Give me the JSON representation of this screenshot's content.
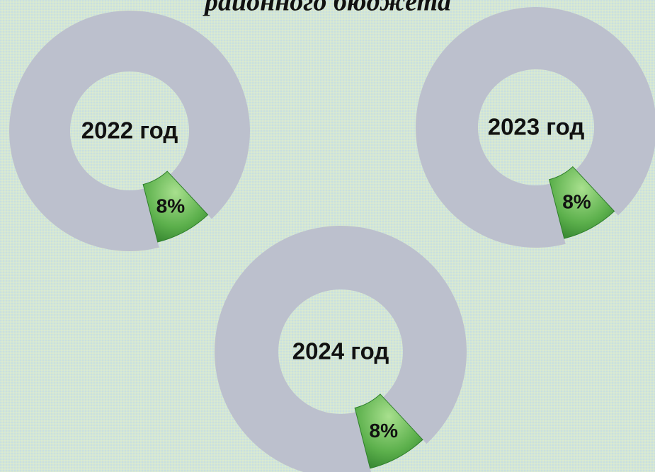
{
  "title": "районного бюджета",
  "chart_data": [
    {
      "type": "donut",
      "label": "2022 год",
      "values": [
        8,
        92
      ],
      "value_labels": [
        "8%",
        null
      ],
      "colors": [
        "#5cb04c",
        "#bcc0cd"
      ]
    },
    {
      "type": "donut",
      "label": "2023 год",
      "values": [
        8,
        92
      ],
      "value_labels": [
        "8%",
        null
      ],
      "colors": [
        "#5cb04c",
        "#bcc0cd"
      ]
    },
    {
      "type": "donut",
      "label": "2024 год",
      "values": [
        8,
        92
      ],
      "value_labels": [
        "8%",
        null
      ],
      "colors": [
        "#5cb04c",
        "#bcc0cd"
      ]
    }
  ]
}
